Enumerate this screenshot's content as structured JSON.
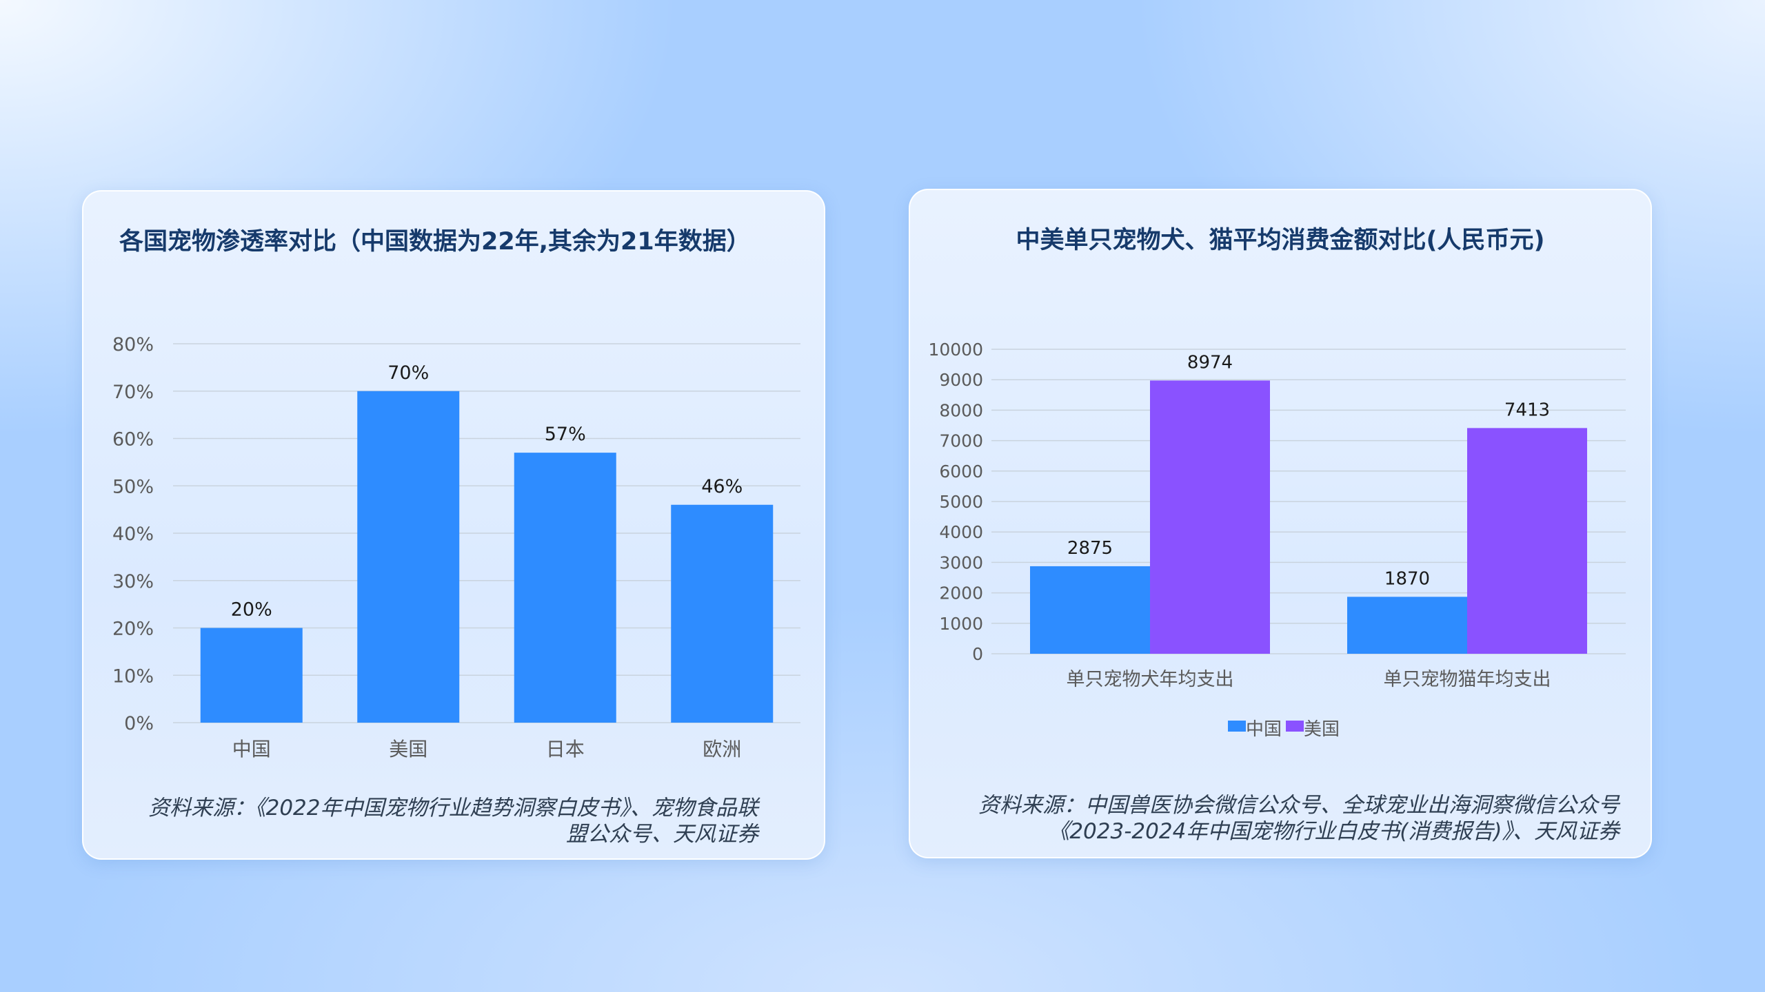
{
  "colors": {
    "china": "#2e8cff",
    "usa": "#8a52ff",
    "title": "#163a6b",
    "axis_text": "#5a5a5a",
    "grid": "#c9d3de"
  },
  "left_card": {
    "title": "各国宠物渗透率对比（中国数据为22年,其余为21年数据）",
    "source_lines": [
      "资料来源：《2022年中国宠物行业趋势洞察白皮书》、宠物食品联",
      "盟公众号、天风证券"
    ]
  },
  "right_card": {
    "title": "中美单只宠物犬、猫平均消费金额对比(人民币元)",
    "source_lines": [
      "资料来源：中国兽医协会微信公众号、全球宠业出海洞察微信公众号",
      "《2023-2024年中国宠物行业白皮书(消费报告)》、天风证券"
    ]
  },
  "chart_data": [
    {
      "type": "bar",
      "title": "各国宠物渗透率对比（中国数据为22年,其余为21年数据）",
      "categories": [
        "中国",
        "美国",
        "日本",
        "欧洲"
      ],
      "values": [
        20,
        70,
        57,
        46
      ],
      "value_labels": [
        "20%",
        "70%",
        "57%",
        "46%"
      ],
      "ylim": [
        0,
        80
      ],
      "yticks": [
        "0%",
        "10%",
        "20%",
        "30%",
        "40%",
        "50%",
        "60%",
        "70%",
        "80%"
      ],
      "grid": true,
      "color": "#2e8cff"
    },
    {
      "type": "bar",
      "title": "中美单只宠物犬、猫平均消费金额对比(人民币元)",
      "categories": [
        "单只宠物犬年均支出",
        "单只宠物猫年均支出"
      ],
      "series": [
        {
          "name": "中国",
          "values": [
            2875,
            1870
          ],
          "color": "#2e8cff"
        },
        {
          "name": "美国",
          "values": [
            8974,
            7413
          ],
          "color": "#8a52ff"
        }
      ],
      "ylim": [
        0,
        10000
      ],
      "yticks": [
        "0",
        "1000",
        "2000",
        "3000",
        "4000",
        "5000",
        "6000",
        "7000",
        "8000",
        "9000",
        "10000"
      ],
      "grid": true,
      "legend": "bottom"
    }
  ]
}
